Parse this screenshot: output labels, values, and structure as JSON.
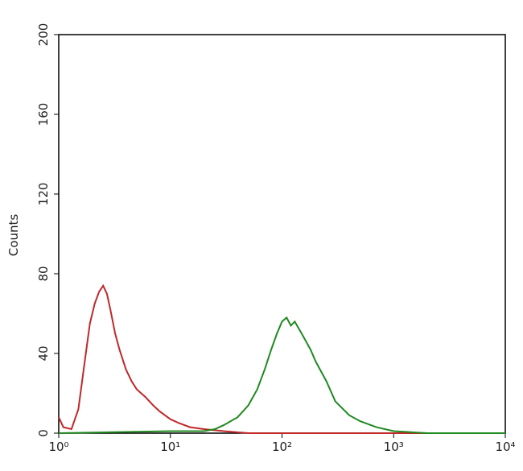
{
  "chart_data": {
    "type": "line",
    "y_label": "Counts",
    "x_scale": "log",
    "xlim": [
      1,
      10000
    ],
    "xticks": [
      {
        "value": 1,
        "label": "10⁰"
      },
      {
        "value": 10,
        "label": "10¹"
      },
      {
        "value": 100,
        "label": "10²"
      },
      {
        "value": 1000,
        "label": "10³"
      },
      {
        "value": 10000,
        "label": "10⁴"
      }
    ],
    "ylim": [
      0,
      200
    ],
    "yticks": [
      0,
      40,
      80,
      120,
      160,
      200
    ],
    "series": [
      {
        "color": "#c0282a",
        "x": [
          1,
          1.1,
          1.3,
          1.5,
          1.7,
          1.9,
          2.1,
          2.3,
          2.5,
          2.7,
          2.9,
          3.2,
          3.5,
          4,
          4.5,
          5,
          6,
          7,
          8,
          10,
          12,
          15,
          20,
          30,
          50,
          100,
          1000,
          10000
        ],
        "values": [
          8,
          3,
          2,
          12,
          35,
          55,
          65,
          71,
          74,
          70,
          62,
          50,
          42,
          32,
          26,
          22,
          18,
          14,
          11,
          7,
          5,
          3,
          2,
          1,
          0,
          0,
          0,
          0
        ]
      },
      {
        "color": "#1f8a1f",
        "x": [
          1,
          10,
          20,
          25,
          30,
          40,
          50,
          60,
          70,
          80,
          90,
          100,
          110,
          120,
          130,
          150,
          180,
          200,
          250,
          300,
          400,
          500,
          700,
          1000,
          2000,
          10000
        ],
        "values": [
          0,
          1,
          1,
          2,
          4,
          8,
          14,
          22,
          32,
          42,
          50,
          56,
          58,
          54,
          56,
          50,
          42,
          36,
          26,
          16,
          9,
          6,
          3,
          1,
          0,
          0
        ]
      }
    ]
  }
}
